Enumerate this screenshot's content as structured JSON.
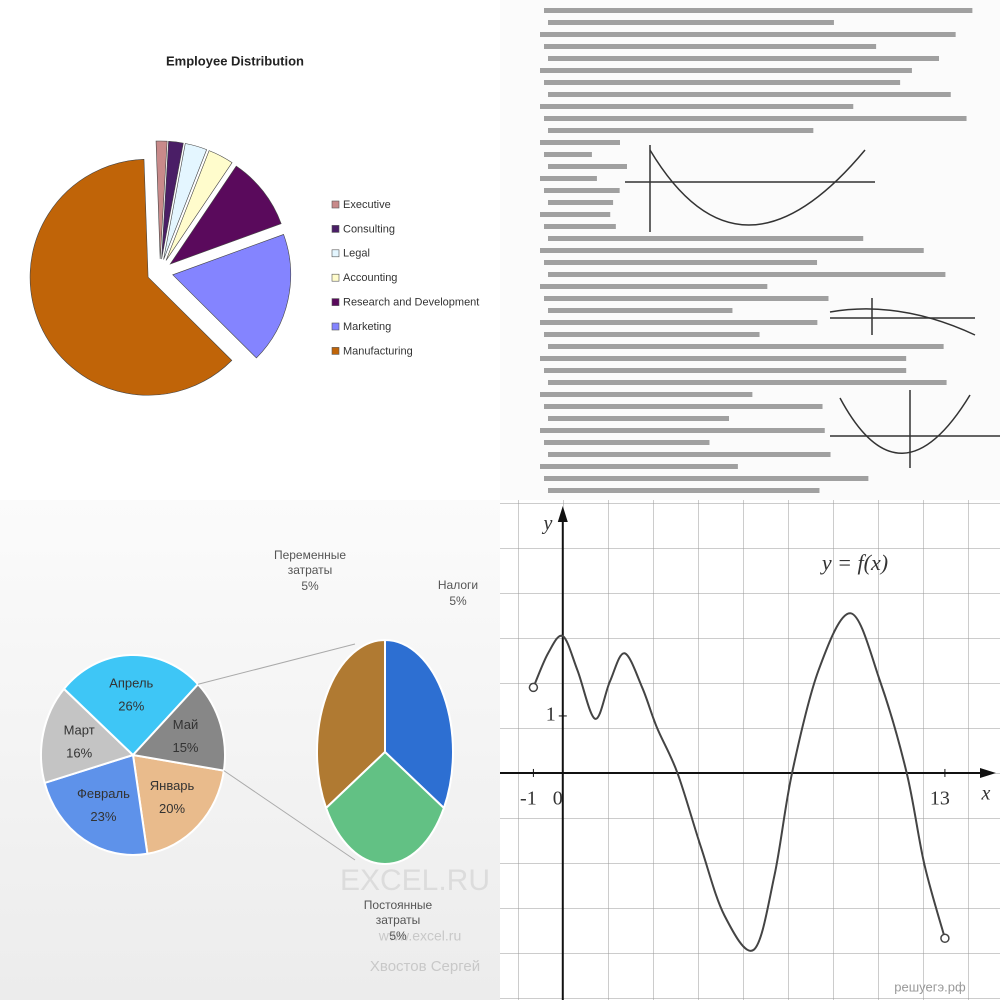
{
  "chart_data": [
    {
      "type": "pie",
      "title": "Employee Distribution",
      "categories": [
        "Executive",
        "Consulting",
        "Legal",
        "Accounting",
        "Research and Development",
        "Marketing",
        "Manufacturing"
      ],
      "values": [
        1.5,
        2,
        3,
        3.5,
        10,
        18,
        62
      ],
      "colors": [
        "#c88a8a",
        "#4a1e66",
        "#e4f6ff",
        "#fffccc",
        "#5a0a5c",
        "#8484ff",
        "#c06408"
      ],
      "legend": "right"
    },
    {
      "type": "pie-of-pie",
      "categories": [
        "Январь",
        "Февраль",
        "Март",
        "Апрель",
        "Май"
      ],
      "values": [
        20,
        23,
        16,
        26,
        15
      ],
      "value_labels": [
        "20%",
        "23%",
        "16%",
        "26%",
        "15%"
      ],
      "colors": [
        "#e9bb8c",
        "#5e92ea",
        "#c4c4c4",
        "#3ec6f6",
        "#878787"
      ],
      "split": {
        "categories": [
          "Переменные затраты",
          "Налоги",
          "Постоянные затраты"
        ],
        "values": [
          5,
          5,
          5
        ],
        "value_labels": [
          "5%",
          "5%",
          "5%"
        ],
        "colors": [
          "#b07a32",
          "#2d6fd2",
          "#62c184"
        ]
      },
      "watermarks": [
        "EXCEL.RU",
        "www.excel.ru",
        "Хвостов Сергей"
      ]
    },
    {
      "type": "line",
      "title": "y = f(x)",
      "x_label": "x",
      "y_label": "y",
      "x": [
        -1,
        -0.5,
        0,
        0.5,
        1.1,
        1.6,
        2.1,
        2.7,
        3.2,
        3.9,
        4.7,
        5.5,
        6.5,
        7.2,
        7.8,
        8.7,
        9.8,
        10.8,
        11.7,
        12.3,
        13
      ],
      "values": [
        1.5,
        2.1,
        2.4,
        1.8,
        0.95,
        1.6,
        2.1,
        1.5,
        0.8,
        0,
        -1.3,
        -2.5,
        -3.1,
        -1.8,
        0,
        1.8,
        2.8,
        1.6,
        0,
        -1.6,
        -2.9
      ],
      "color": "#444444",
      "xlim": [
        -2,
        14.5
      ],
      "ylim": [
        -4,
        4.7
      ],
      "xticks": [
        -1,
        0,
        13
      ],
      "yticks": [
        1
      ],
      "watermark": "решуегэ.рф"
    }
  ]
}
